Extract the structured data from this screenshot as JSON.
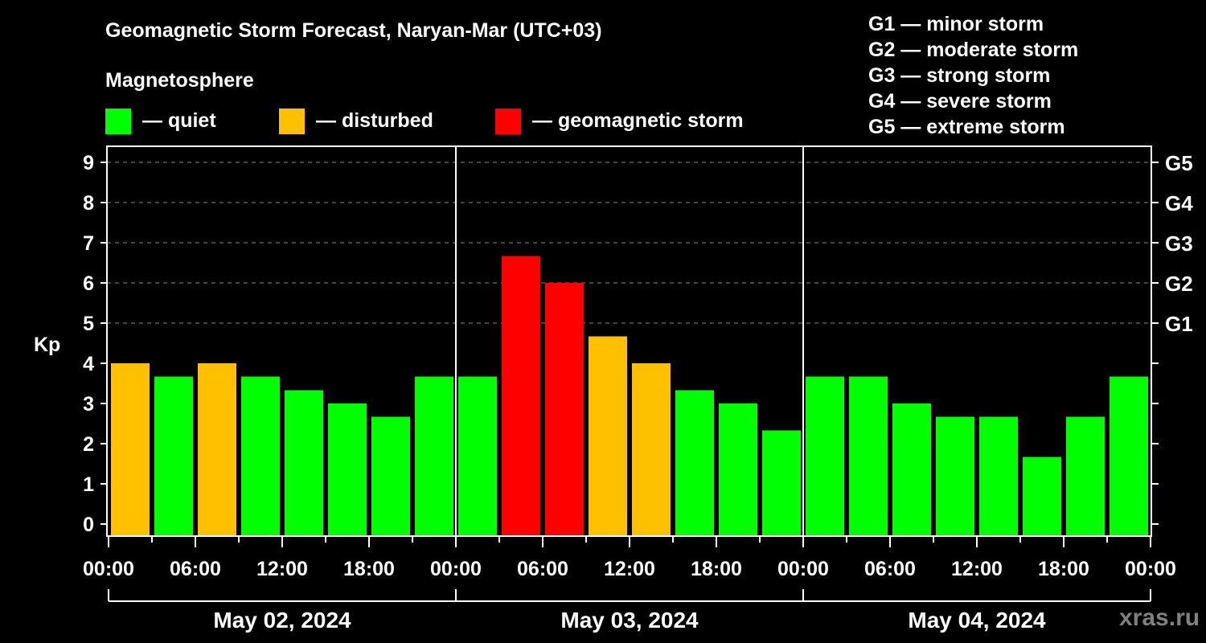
{
  "header": {
    "title": "Geomagnetic Storm Forecast, Naryan-Mar (UTC+03)",
    "subtitle": "Magnetosphere"
  },
  "legend": [
    {
      "label": "— quiet",
      "color": "#00ff00"
    },
    {
      "label": "— disturbed",
      "color": "#ffc000"
    },
    {
      "label": "— geomagnetic storm",
      "color": "#ff0000"
    }
  ],
  "g_scale": [
    {
      "label": "G1 — minor storm"
    },
    {
      "label": "G2 — moderate storm"
    },
    {
      "label": "G3 — strong storm"
    },
    {
      "label": "G4 — severe storm"
    },
    {
      "label": "G5 — extreme storm"
    }
  ],
  "watermark": "xras.ru",
  "chart_data": {
    "type": "bar",
    "title": "Geomagnetic Storm Forecast, Naryan-Mar (UTC+03)",
    "xlabel": "",
    "ylabel": "Kp",
    "ylim": [
      0,
      9
    ],
    "yticks": [
      0,
      1,
      2,
      3,
      4,
      5,
      6,
      7,
      8,
      9
    ],
    "right_axis_ticks": [
      {
        "value": 5,
        "label": "G1"
      },
      {
        "value": 6,
        "label": "G2"
      },
      {
        "value": 7,
        "label": "G3"
      },
      {
        "value": 8,
        "label": "G4"
      },
      {
        "value": 9,
        "label": "G5"
      }
    ],
    "grid": "dashed horizontal at Kp 5-9",
    "x_tick_labels": [
      "00:00",
      "06:00",
      "12:00",
      "18:00",
      "00:00",
      "06:00",
      "12:00",
      "18:00",
      "00:00",
      "06:00",
      "12:00",
      "18:00",
      "00:00"
    ],
    "days": [
      "May 02, 2024",
      "May 03, 2024",
      "May 04, 2024"
    ],
    "categories": [
      "May 02 00-03",
      "May 02 03-06",
      "May 02 06-09",
      "May 02 09-12",
      "May 02 12-15",
      "May 02 15-18",
      "May 02 18-21",
      "May 02 21-24",
      "May 03 00-03",
      "May 03 03-06",
      "May 03 06-09",
      "May 03 09-12",
      "May 03 12-15",
      "May 03 15-18",
      "May 03 18-21",
      "May 03 21-24",
      "May 04 00-03",
      "May 04 03-06",
      "May 04 06-09",
      "May 04 09-12",
      "May 04 12-15",
      "May 04 15-18",
      "May 04 18-21",
      "May 04 21-24"
    ],
    "values": [
      4.0,
      3.67,
      4.0,
      3.67,
      3.33,
      3.0,
      2.67,
      3.67,
      3.67,
      6.67,
      6.0,
      4.67,
      4.0,
      3.33,
      3.0,
      2.33,
      3.67,
      3.67,
      3.0,
      2.67,
      2.67,
      1.67,
      2.67,
      3.67
    ],
    "status": [
      "disturbed",
      "quiet",
      "disturbed",
      "quiet",
      "quiet",
      "quiet",
      "quiet",
      "quiet",
      "quiet",
      "storm",
      "storm",
      "disturbed",
      "disturbed",
      "quiet",
      "quiet",
      "quiet",
      "quiet",
      "quiet",
      "quiet",
      "quiet",
      "quiet",
      "quiet",
      "quiet",
      "quiet"
    ],
    "colors": {
      "quiet": "#00ff00",
      "disturbed": "#ffc000",
      "storm": "#ff0000"
    }
  }
}
